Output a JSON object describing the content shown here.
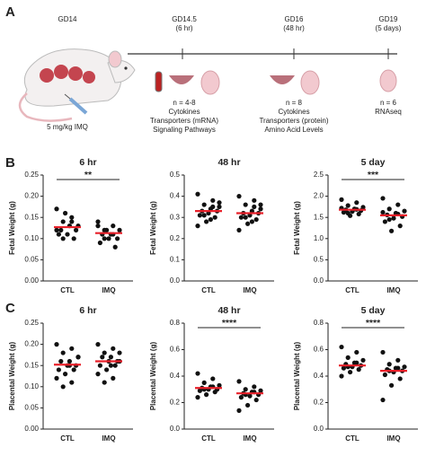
{
  "figure": {
    "panel_a": {
      "label": "A",
      "start": "GD14",
      "dose": "5 mg/kg IMQ",
      "timepoints": [
        {
          "label": [
            "GD14.5",
            "(6 hr)"
          ],
          "notes": [
            "n = 4-8",
            "Cytokines",
            "Transporters (mRNA)",
            "Signaling Pathways"
          ]
        },
        {
          "label": [
            "GD16",
            "(48 hr)"
          ],
          "notes": [
            "n = 8",
            "Cytokines",
            "Transporters (protein)",
            "Amino Acid Levels"
          ]
        },
        {
          "label": [
            "GD19",
            "(5 days)"
          ],
          "notes": [
            "n = 6",
            "RNAseq"
          ]
        }
      ]
    },
    "panel_b_label": "B",
    "panel_c_label": "C"
  },
  "chart_data": [
    {
      "type": "dot",
      "title": "6 hr",
      "y_label": "Fetal Weight (g)",
      "categories": [
        "CTL",
        "IMQ"
      ],
      "groups": [
        [
          0.17,
          0.15,
          0.14,
          0.13,
          0.13,
          0.12,
          0.12,
          0.11,
          0.11,
          0.1,
          0.16,
          0.12,
          0.14,
          0.1
        ],
        [
          0.14,
          0.13,
          0.12,
          0.12,
          0.11,
          0.11,
          0.1,
          0.1,
          0.09,
          0.08,
          0.12,
          0.13,
          0.11,
          0.1
        ]
      ],
      "means": [
        0.127,
        0.113
      ],
      "significance": "**",
      "point_color": "#111111",
      "mean_color": "#e8202a",
      "ylim": [
        0,
        0.25
      ],
      "yticks": [
        {
          "value": 0,
          "label": "0.00"
        },
        0.05,
        {
          "value": 0.1,
          "label": "0.10"
        },
        0.15,
        {
          "value": 0.2,
          "label": "0.20"
        },
        0.25
      ]
    },
    {
      "type": "dot",
      "title": "48 hr",
      "y_label": "Fetal Weight (g)",
      "categories": [
        "CTL",
        "IMQ"
      ],
      "groups": [
        [
          0.41,
          0.38,
          0.36,
          0.35,
          0.34,
          0.33,
          0.33,
          0.32,
          0.31,
          0.3,
          0.28,
          0.26,
          0.35,
          0.31,
          0.37,
          0.29
        ],
        [
          0.4,
          0.38,
          0.36,
          0.34,
          0.33,
          0.32,
          0.32,
          0.31,
          0.3,
          0.29,
          0.27,
          0.24,
          0.35,
          0.3,
          0.36,
          0.28
        ]
      ],
      "means": [
        0.33,
        0.32
      ],
      "point_color": "#111111",
      "mean_color": "#e8202a",
      "ylim": [
        0,
        0.5
      ],
      "yticks": [
        {
          "value": 0,
          "label": "0.0"
        },
        0.1,
        0.2,
        0.3,
        0.4,
        0.5
      ]
    },
    {
      "type": "dot",
      "title": "5 day",
      "y_label": "Fetal Weight (g)",
      "categories": [
        "CTL",
        "IMQ"
      ],
      "groups": [
        [
          1.92,
          1.85,
          1.78,
          1.74,
          1.7,
          1.68,
          1.66,
          1.64,
          1.62,
          1.58,
          1.54,
          1.72,
          1.69,
          1.6
        ],
        [
          1.95,
          1.8,
          1.7,
          1.65,
          1.6,
          1.56,
          1.52,
          1.48,
          1.4,
          1.3,
          1.18,
          1.62,
          1.58,
          1.45
        ]
      ],
      "means": [
        1.68,
        1.55
      ],
      "significance": "***",
      "point_color": "#111111",
      "mean_color": "#e8202a",
      "ylim": [
        0,
        2.5
      ],
      "yticks": [
        {
          "value": 0,
          "label": "0.0"
        },
        0.5,
        {
          "value": 1,
          "label": "1.0"
        },
        1.5,
        {
          "value": 2,
          "label": "2.0"
        },
        2.5
      ]
    },
    {
      "type": "dot",
      "title": "6 hr",
      "y_label": "Placental Weight (g)",
      "categories": [
        "CTL",
        "IMQ"
      ],
      "groups": [
        [
          0.2,
          0.19,
          0.18,
          0.17,
          0.16,
          0.16,
          0.15,
          0.15,
          0.14,
          0.14,
          0.13,
          0.12,
          0.11,
          0.1,
          0.17,
          0.15
        ],
        [
          0.2,
          0.19,
          0.18,
          0.18,
          0.17,
          0.17,
          0.16,
          0.16,
          0.15,
          0.15,
          0.14,
          0.13,
          0.12,
          0.11,
          0.16,
          0.15
        ]
      ],
      "means": [
        0.152,
        0.16
      ],
      "point_color": "#111111",
      "mean_color": "#e8202a",
      "ylim": [
        0,
        0.25
      ],
      "yticks": [
        {
          "value": 0,
          "label": "0.00"
        },
        0.05,
        {
          "value": 0.1,
          "label": "0.10"
        },
        0.15,
        {
          "value": 0.2,
          "label": "0.20"
        },
        0.25
      ]
    },
    {
      "type": "dot",
      "title": "48 hr",
      "y_label": "Placental Weight (g)",
      "categories": [
        "CTL",
        "IMQ"
      ],
      "groups": [
        [
          0.42,
          0.38,
          0.35,
          0.33,
          0.32,
          0.31,
          0.3,
          0.3,
          0.29,
          0.28,
          0.26,
          0.24,
          0.32,
          0.3
        ],
        [
          0.36,
          0.32,
          0.3,
          0.29,
          0.28,
          0.27,
          0.26,
          0.25,
          0.24,
          0.22,
          0.18,
          0.14,
          0.28,
          0.26
        ]
      ],
      "means": [
        0.31,
        0.27
      ],
      "significance": "****",
      "point_color": "#111111",
      "mean_color": "#e8202a",
      "ylim": [
        0,
        0.8
      ],
      "yticks": [
        {
          "value": 0,
          "label": "0.0"
        },
        0.2,
        0.4,
        0.6,
        0.8
      ]
    },
    {
      "type": "dot",
      "title": "5 day",
      "y_label": "Placental Weight (g)",
      "categories": [
        "CTL",
        "IMQ"
      ],
      "groups": [
        [
          0.62,
          0.58,
          0.54,
          0.52,
          0.5,
          0.49,
          0.48,
          0.47,
          0.46,
          0.45,
          0.43,
          0.4,
          0.5,
          0.47
        ],
        [
          0.58,
          0.52,
          0.49,
          0.47,
          0.46,
          0.45,
          0.44,
          0.43,
          0.41,
          0.38,
          0.33,
          0.22,
          0.46,
          0.44
        ]
      ],
      "means": [
        0.48,
        0.44
      ],
      "significance": "****",
      "point_color": "#111111",
      "mean_color": "#e8202a",
      "ylim": [
        0,
        0.8
      ],
      "yticks": [
        {
          "value": 0,
          "label": "0.0"
        },
        0.2,
        0.4,
        0.6,
        0.8
      ]
    }
  ]
}
